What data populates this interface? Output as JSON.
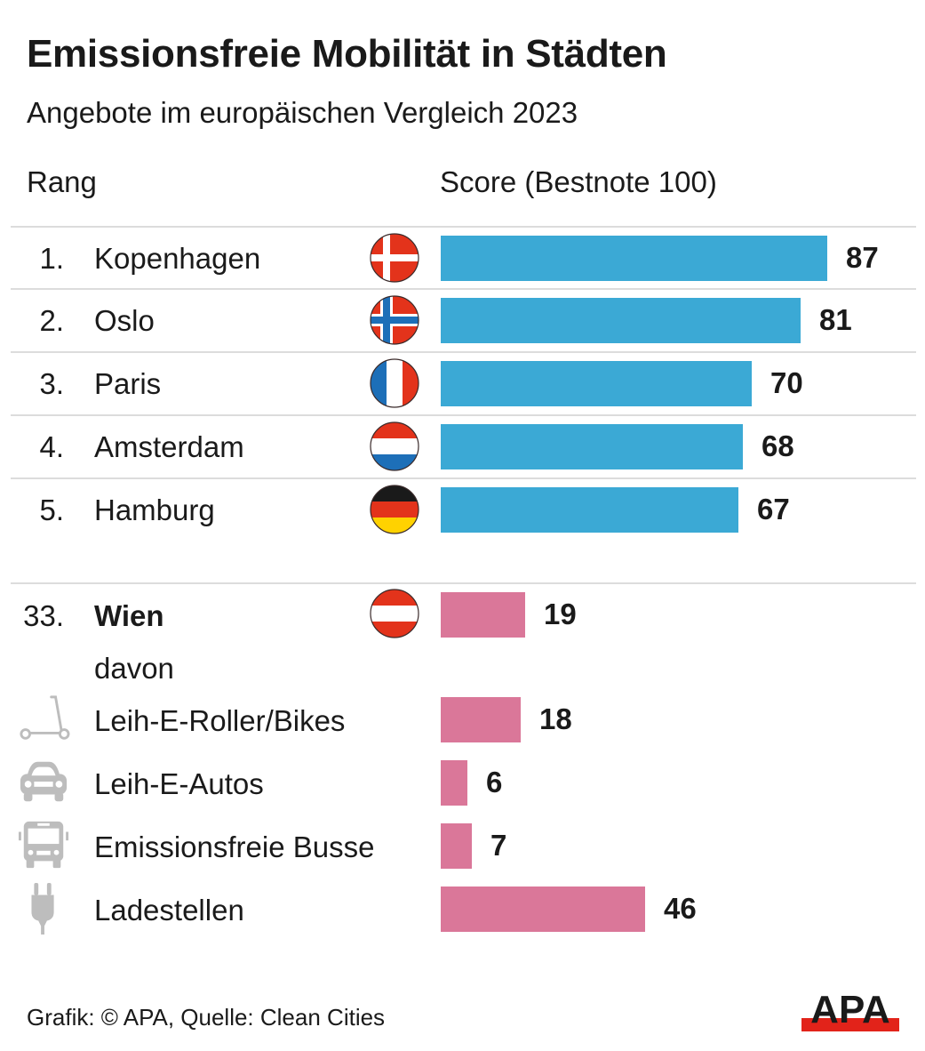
{
  "header": {
    "title": "Emissionsfreie Mobilität in Städten",
    "subtitle": "Angebote im europäischen Vergleich 2023",
    "col_rank": "Rang",
    "col_score": "Score (Bestnote 100)"
  },
  "footer": {
    "source": "Grafik: © APA, Quelle: Clean Cities",
    "logo": "APA"
  },
  "colors": {
    "top_bar": "#3BA9D5",
    "wien_bar": "#DA7799",
    "separator": "#DCDCDC",
    "icon_gray": "#BDBDBD",
    "logo_red": "#E2231A"
  },
  "chart_data": {
    "type": "bar",
    "orientation": "horizontal",
    "title": "Emissionsfreie Mobilität in Städten",
    "subtitle": "Angebote im europäischen Vergleich 2023",
    "xlabel": "Score (Bestnote 100)",
    "ylabel": "Rang",
    "xlim": [
      0,
      100
    ],
    "grid": false,
    "top_cities": [
      {
        "rank": "1.",
        "city": "Kopenhagen",
        "flag": "denmark-flag",
        "value": 87
      },
      {
        "rank": "2.",
        "city": "Oslo",
        "flag": "norway-flag",
        "value": 81
      },
      {
        "rank": "3.",
        "city": "Paris",
        "flag": "france-flag",
        "value": 70
      },
      {
        "rank": "4.",
        "city": "Amsterdam",
        "flag": "netherlands-flag",
        "value": 68
      },
      {
        "rank": "5.",
        "city": "Hamburg",
        "flag": "germany-flag",
        "value": 67
      }
    ],
    "highlight": {
      "rank": "33.",
      "city": "Wien",
      "flag": "austria-flag",
      "value": 19
    },
    "breakdown_label": "davon",
    "breakdown": [
      {
        "label": "Leih-E-Roller/Bikes",
        "icon": "scooter-icon",
        "value": 18
      },
      {
        "label": "Leih-E-Autos",
        "icon": "car-icon",
        "value": 6
      },
      {
        "label": "Emissionsfreie Busse",
        "icon": "bus-icon",
        "value": 7
      },
      {
        "label": "Ladestellen",
        "icon": "plug-icon",
        "value": 46
      }
    ],
    "source": "Grafik: © APA, Quelle: Clean Cities"
  }
}
